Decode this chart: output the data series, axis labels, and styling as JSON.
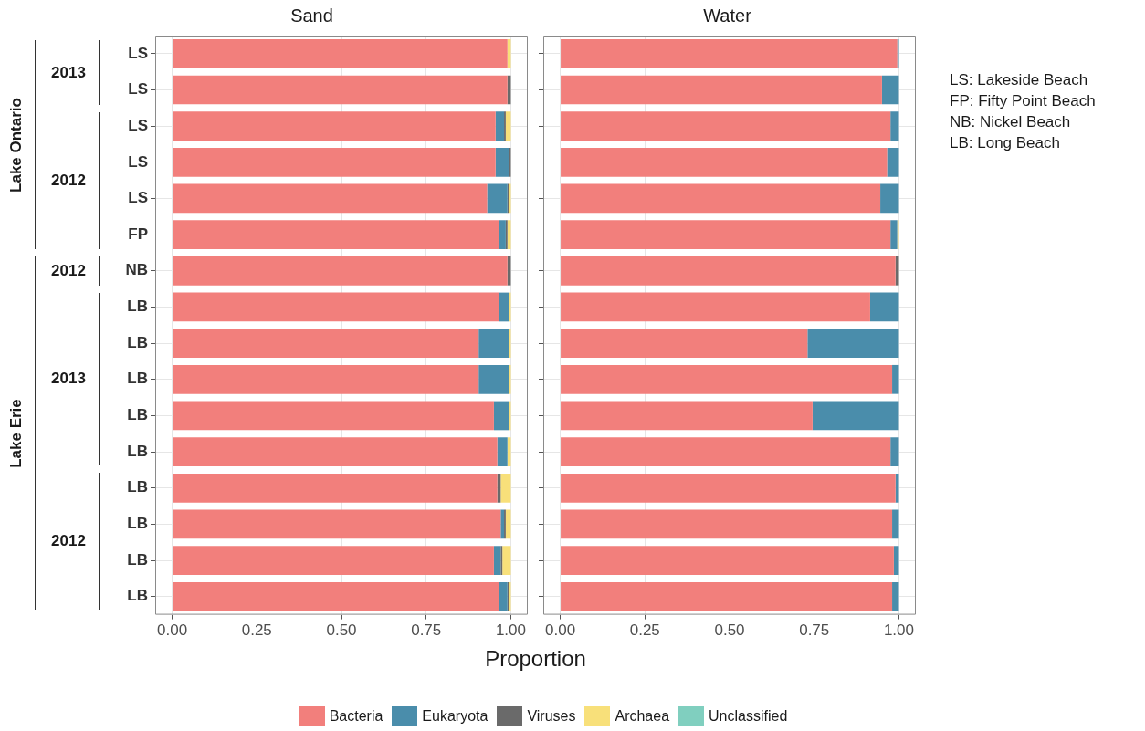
{
  "chart_data": [
    {
      "type": "bar",
      "title": "Sand",
      "xlabel": "Proportion",
      "orientation": "horizontal",
      "stacked": true,
      "grid": true,
      "legend": "bottom",
      "categories": [
        "LS",
        "LS",
        "LS",
        "LS",
        "LS",
        "FP",
        "NB",
        "LB",
        "LB",
        "LB",
        "LB",
        "LB",
        "LB",
        "LB",
        "LB",
        "LB"
      ],
      "xlim": [
        -0.05,
        1.05
      ],
      "xticks": [
        {
          "value": 0,
          "label": "0.00"
        },
        {
          "value": 0.25,
          "label": "0.25"
        },
        {
          "value": 0.5,
          "label": "0.50"
        },
        {
          "value": 0.75,
          "label": "0.75"
        },
        {
          "value": 1,
          "label": "1.00"
        }
      ],
      "series": [
        {
          "name": "Bacteria",
          "color": "#f27f7c",
          "values": [
            0.99,
            0.99,
            0.955,
            0.955,
            0.93,
            0.965,
            0.99,
            0.965,
            0.905,
            0.905,
            0.95,
            0.96,
            0.96,
            0.97,
            0.95,
            0.965
          ]
        },
        {
          "name": "Eukaryota",
          "color": "#4a8dab",
          "values": [
            0,
            0,
            0.025,
            0.04,
            0.06,
            0.02,
            0,
            0.03,
            0.09,
            0.09,
            0.045,
            0.03,
            0,
            0.01,
            0.02,
            0.025
          ]
        },
        {
          "name": "Viruses",
          "color": "#6a6a6a",
          "values": [
            0,
            0.01,
            0.005,
            0.005,
            0.005,
            0.005,
            0.01,
            0,
            0,
            0,
            0,
            0,
            0.01,
            0.005,
            0.005,
            0.005
          ]
        },
        {
          "name": "Archaea",
          "color": "#f8e07a",
          "values": [
            0.01,
            0,
            0.015,
            0,
            0.005,
            0.01,
            0,
            0.005,
            0.005,
            0.005,
            0.005,
            0.01,
            0.03,
            0.015,
            0.025,
            0.005
          ]
        },
        {
          "name": "Unclassified",
          "color": "#80cfbf",
          "values": [
            0,
            0,
            0,
            0,
            0,
            0,
            0,
            0,
            0,
            0,
            0,
            0,
            0,
            0,
            0,
            0
          ]
        }
      ],
      "annotations": [
        "Lake Ontario",
        "Lake Erie",
        "2013",
        "2012",
        "2012",
        "2013",
        "2012"
      ]
    },
    {
      "type": "bar",
      "title": "Water",
      "orientation": "horizontal",
      "stacked": true,
      "grid": true,
      "categories": [
        null,
        null,
        null,
        null,
        null,
        null,
        null,
        null,
        null,
        null,
        null,
        null,
        null,
        null,
        null,
        null
      ],
      "xlim": [
        -0.05,
        1.05
      ],
      "xticks": [
        {
          "value": 0,
          "label": "0.00"
        },
        {
          "value": 0.25,
          "label": "0.25"
        },
        {
          "value": 0.5,
          "label": "0.50"
        },
        {
          "value": 0.75,
          "label": "0.75"
        },
        {
          "value": 1,
          "label": "1.00"
        }
      ],
      "series": [
        {
          "color": "#f27f7c",
          "values": [
            0.995,
            0.95,
            0.975,
            0.965,
            0.945,
            0.975,
            0.99,
            0.915,
            0.73,
            0.98,
            0.745,
            0.975,
            0.99,
            0.98,
            0.985,
            0.98
          ]
        },
        {
          "color": "#4a8dab",
          "values": [
            0.005,
            0.05,
            0.025,
            0.035,
            0.055,
            0.02,
            0,
            0.085,
            0.27,
            0.02,
            0.255,
            0.025,
            0.01,
            0.02,
            0.015,
            0.02
          ]
        },
        {
          "color": "#6a6a6a",
          "values": [
            0,
            0,
            0,
            0,
            0,
            0,
            0.01,
            0,
            0,
            0,
            0,
            0,
            0,
            0,
            0,
            0
          ]
        },
        {
          "color": "#f8e07a",
          "values": [
            0,
            0,
            0,
            0,
            0,
            0.005,
            0,
            0,
            0,
            0,
            0,
            0,
            0,
            0,
            0,
            0
          ]
        },
        {
          "color": "#80cfbf",
          "values": [
            0,
            0,
            0,
            0,
            0,
            0,
            0,
            0,
            0,
            0,
            0,
            0,
            0,
            0,
            0,
            0
          ]
        }
      ],
      "annotations": [
        "LS: Lakeside Beach",
        "FP: Fifty Point Beach",
        "NB: Nickel Beach",
        "LB: Long Beach"
      ]
    }
  ]
}
